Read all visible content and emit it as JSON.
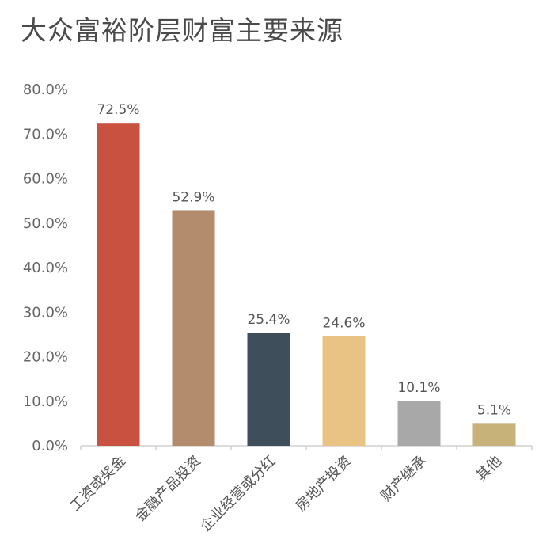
{
  "chart_data": {
    "type": "bar",
    "title": "大众富裕阶层财富主要来源",
    "categories": [
      "工资或奖金",
      "金融产品投资",
      "企业经营或分红",
      "房地产投资",
      "财产继承",
      "其他"
    ],
    "values": [
      72.5,
      52.9,
      25.4,
      24.6,
      10.1,
      5.1
    ],
    "value_labels": [
      "72.5%",
      "52.9%",
      "25.4%",
      "24.6%",
      "10.1%",
      "5.1%"
    ],
    "colors": [
      "#c8513f",
      "#b38b6d",
      "#3f4e5b",
      "#e9c384",
      "#a8a8a8",
      "#c7b27a"
    ],
    "yticks": [
      "0.0%",
      "10.0%",
      "20.0%",
      "30.0%",
      "40.0%",
      "50.0%",
      "60.0%",
      "70.0%",
      "80.0%"
    ],
    "ylim": [
      0,
      80
    ],
    "grid": false,
    "legend": "none"
  }
}
